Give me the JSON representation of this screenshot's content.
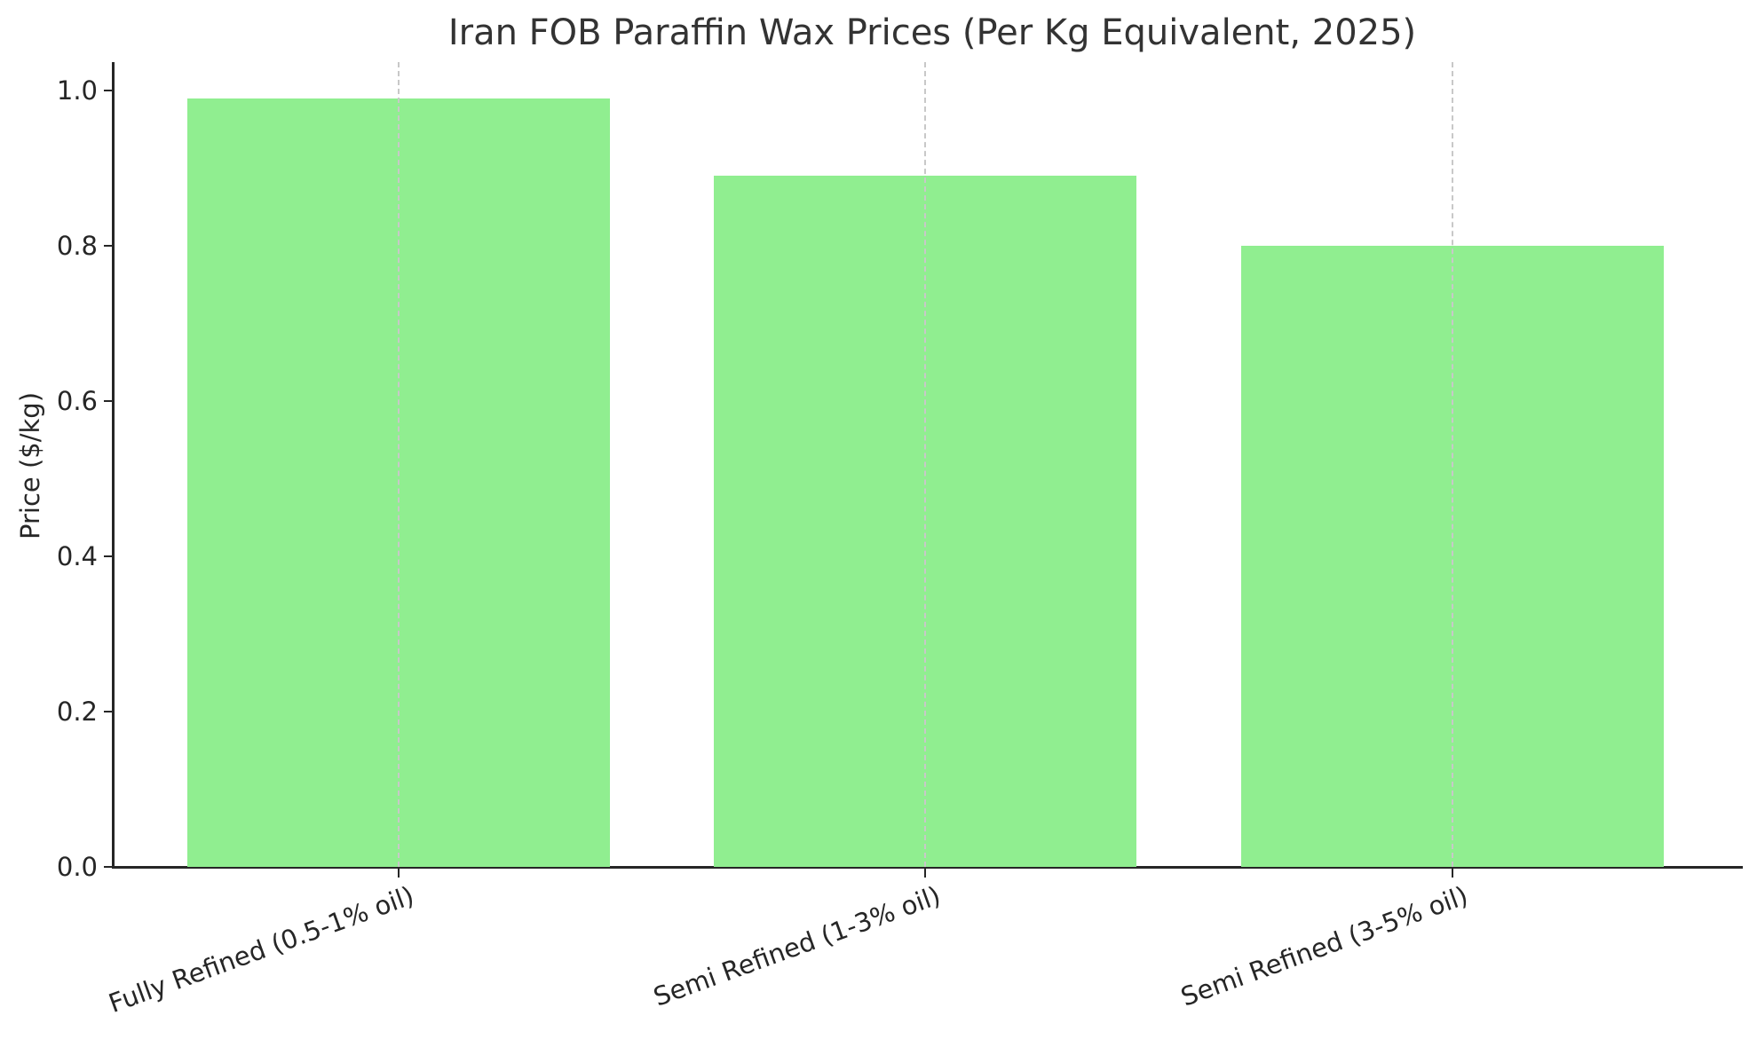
{
  "chart_data": {
    "type": "bar",
    "title": "Iran FOB Paraffin Wax Prices (Per Kg Equivalent, 2025)",
    "xlabel": "",
    "ylabel": "Price ($/kg)",
    "categories": [
      "Fully Refined (0.5-1% oil)",
      "Semi Refined (1-3% oil)",
      "Semi Refined (3-5% oil)"
    ],
    "values": [
      0.99,
      0.89,
      0.8
    ],
    "ylim": [
      0,
      1.04
    ],
    "yticks": [
      "0.0",
      "0.2",
      "0.4",
      "0.6",
      "0.8",
      "1.0"
    ],
    "grid": "x-axis dashed vertical lines",
    "legend": null,
    "bar_color": "#90ee90"
  }
}
